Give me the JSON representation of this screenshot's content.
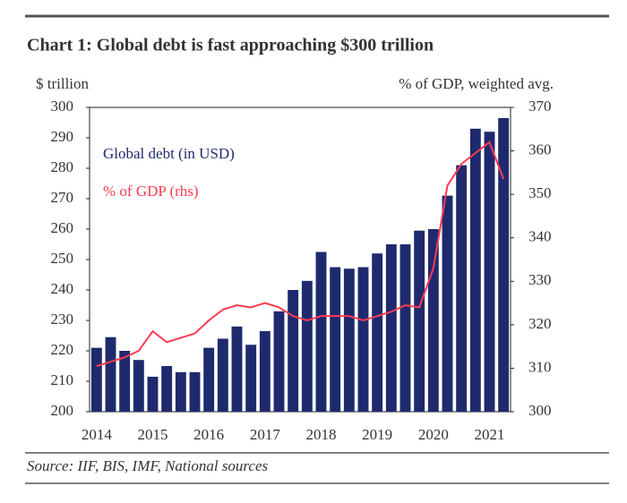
{
  "chart_data": {
    "type": "bar-line",
    "title": "Chart 1: Global debt is fast approaching $300 trillion",
    "y_label": "$ trillion",
    "y2_label": "% of GDP, weighted avg.",
    "source": "Source: IIF, BIS, IMF, National sources",
    "categories": [
      "2014",
      null,
      null,
      null,
      "2015",
      null,
      null,
      null,
      "2016",
      null,
      null,
      null,
      "2017",
      null,
      null,
      null,
      "2018",
      null,
      null,
      null,
      "2019",
      null,
      null,
      null,
      "2020",
      null,
      null,
      null,
      "2021",
      null
    ],
    "series": [
      {
        "name": "Global debt (in USD)",
        "type": "bar",
        "color": "#1f2a6e",
        "values": [
          221,
          224.5,
          220,
          217,
          211.5,
          215,
          213,
          213,
          221,
          224,
          228,
          222,
          226.5,
          233,
          240,
          243,
          252.5,
          247.5,
          247,
          247.5,
          252,
          255,
          255,
          259.5,
          260,
          271,
          281,
          293,
          292,
          296.5
        ]
      },
      {
        "name": "% of GDP (rhs)",
        "type": "line",
        "axis": "y2",
        "color": "#ff3b4f",
        "values": [
          310.5,
          311.5,
          312.5,
          314,
          318.5,
          316,
          317,
          318,
          321,
          323.5,
          324.5,
          324,
          325,
          324,
          322,
          321,
          322,
          322,
          322,
          321,
          322,
          323,
          324.5,
          324,
          333,
          352,
          357,
          359.5,
          362,
          353.5
        ]
      }
    ],
    "ylim": [
      200,
      300
    ],
    "yticks": [
      200,
      210,
      220,
      230,
      240,
      250,
      260,
      270,
      280,
      290,
      300
    ],
    "y2lim": [
      300,
      370
    ],
    "y2ticks": [
      300,
      310,
      320,
      330,
      340,
      350,
      360,
      370
    ]
  }
}
